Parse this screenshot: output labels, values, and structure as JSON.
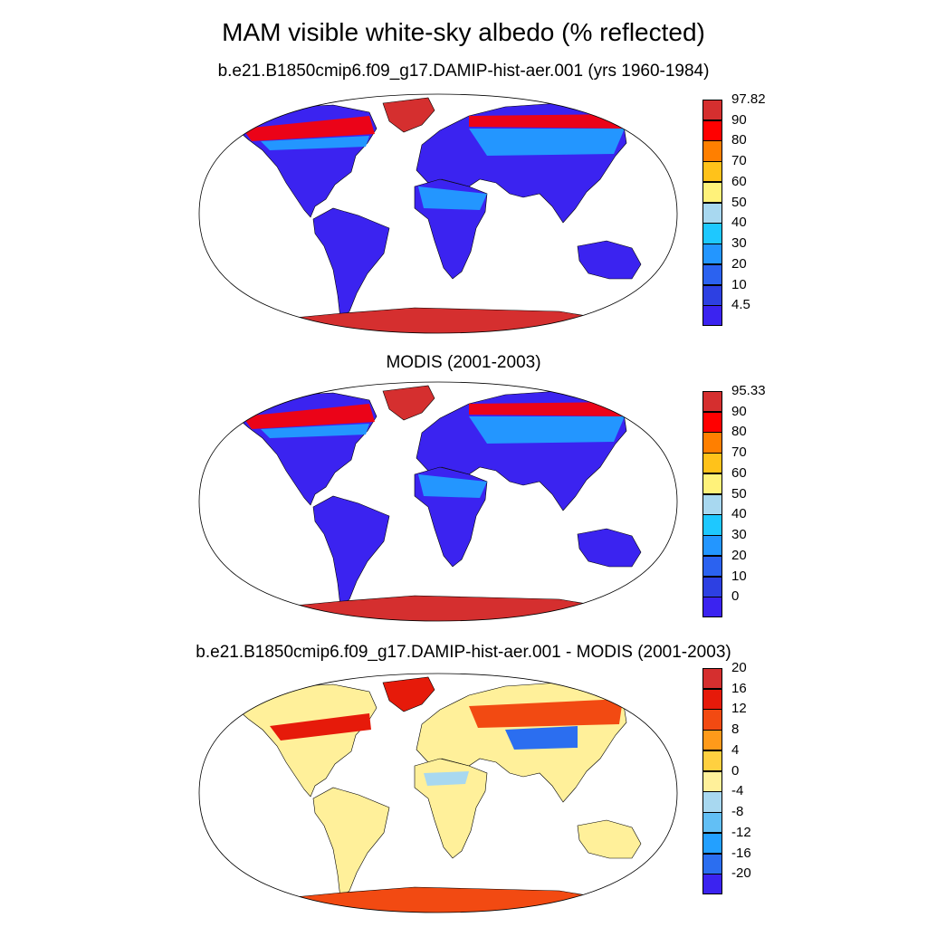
{
  "title": "MAM visible white-sky albedo (% reflected)",
  "panels": [
    {
      "title": "b.e21.B1850cmip6.f09_g17.DAMIP-hist-aer.001 (yrs 1960-1984)",
      "scale": "abs",
      "colorbar": {
        "labels": [
          "97.82",
          "90",
          "80",
          "70",
          "60",
          "50",
          "40",
          "30",
          "20",
          "10",
          "4.5"
        ],
        "colors": [
          "#d52f2f",
          "#ff0000",
          "#ff7f00",
          "#ffc21a",
          "#fff27a",
          "#a8d8f0",
          "#1ec8ff",
          "#2396ff",
          "#2b62f0",
          "#2d40e2",
          "#3b23f0"
        ]
      }
    },
    {
      "title": "MODIS (2001-2003)",
      "scale": "abs",
      "colorbar": {
        "labels": [
          "95.33",
          "90",
          "80",
          "70",
          "60",
          "50",
          "40",
          "30",
          "20",
          "10",
          "0"
        ],
        "colors": [
          "#d52f2f",
          "#ff0000",
          "#ff7f00",
          "#ffc21a",
          "#fff27a",
          "#a8d8f0",
          "#1ec8ff",
          "#2396ff",
          "#2b62f0",
          "#2d40e2",
          "#3b23f0"
        ]
      }
    },
    {
      "title": "b.e21.B1850cmip6.f09_g17.DAMIP-hist-aer.001 - MODIS (2001-2003)",
      "scale": "diff",
      "colorbar": {
        "labels": [
          "20",
          "16",
          "12",
          "8",
          "4",
          "0",
          "-4",
          "-8",
          "-12",
          "-16",
          "-20"
        ],
        "colors": [
          "#d52f2f",
          "#e61a0a",
          "#f24a12",
          "#ff9a1a",
          "#ffd040",
          "#fff09a",
          "#a8d8f0",
          "#62bff5",
          "#23a0ff",
          "#2b6ef0",
          "#3b23f0"
        ]
      }
    }
  ]
}
